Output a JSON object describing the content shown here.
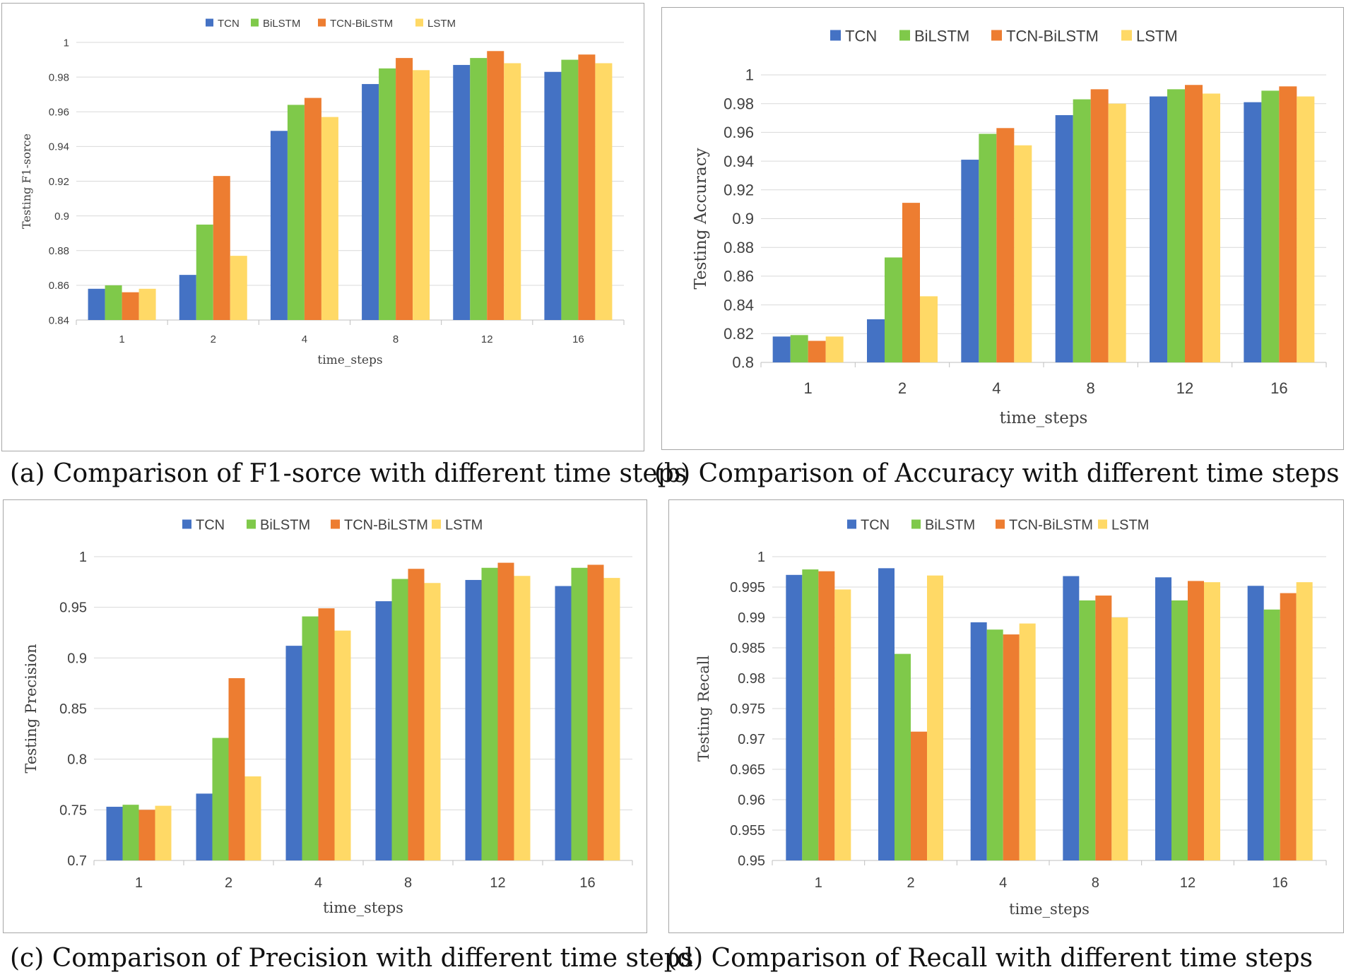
{
  "colors": {
    "TCN": "#4472c4",
    "BiLSTM": "#7fc94a",
    "TCN-BiLSTM": "#ed7d31",
    "LSTM": "#ffd966"
  },
  "chart_data": [
    {
      "type": "bar",
      "title": "",
      "categories": [
        "1",
        "2",
        "4",
        "8",
        "12",
        "16"
      ],
      "xlabel": "time_steps",
      "ylabel": "Testing F1-sorce",
      "ylim": [
        0.84,
        1
      ],
      "yticks": [
        0.84,
        0.86,
        0.88,
        0.9,
        0.92,
        0.94,
        0.96,
        0.98,
        1
      ],
      "ytick_labels": [
        "0.84",
        "0.86",
        "0.88",
        "0.9",
        "0.92",
        "0.94",
        "0.96",
        "0.98",
        "1"
      ],
      "legend": "top",
      "series": [
        {
          "name": "TCN",
          "values": [
            0.858,
            0.866,
            0.949,
            0.976,
            0.987,
            0.983
          ]
        },
        {
          "name": "BiLSTM",
          "values": [
            0.86,
            0.895,
            0.964,
            0.985,
            0.991,
            0.99
          ]
        },
        {
          "name": "TCN-BiLSTM",
          "values": [
            0.856,
            0.923,
            0.968,
            0.991,
            0.995,
            0.993
          ]
        },
        {
          "name": "LSTM",
          "values": [
            0.858,
            0.877,
            0.957,
            0.984,
            0.988,
            0.988
          ]
        }
      ]
    },
    {
      "type": "bar",
      "title": "",
      "categories": [
        "1",
        "2",
        "4",
        "8",
        "12",
        "16"
      ],
      "xlabel": "time_steps",
      "ylabel": "Testing Accuracy",
      "ylim": [
        0.8,
        1
      ],
      "yticks": [
        0.8,
        0.82,
        0.84,
        0.86,
        0.88,
        0.9,
        0.92,
        0.94,
        0.96,
        0.98,
        1
      ],
      "ytick_labels": [
        "0.8",
        "0.82",
        "0.84",
        "0.86",
        "0.88",
        "0.9",
        "0.92",
        "0.94",
        "0.96",
        "0.98",
        "1"
      ],
      "legend": "top",
      "series": [
        {
          "name": "TCN",
          "values": [
            0.818,
            0.83,
            0.941,
            0.972,
            0.985,
            0.981
          ]
        },
        {
          "name": "BiLSTM",
          "values": [
            0.819,
            0.873,
            0.959,
            0.983,
            0.99,
            0.989
          ]
        },
        {
          "name": "TCN-BiLSTM",
          "values": [
            0.815,
            0.911,
            0.963,
            0.99,
            0.993,
            0.992
          ]
        },
        {
          "name": "LSTM",
          "values": [
            0.818,
            0.846,
            0.951,
            0.98,
            0.987,
            0.985
          ]
        }
      ]
    },
    {
      "type": "bar",
      "title": "",
      "categories": [
        "1",
        "2",
        "4",
        "8",
        "12",
        "16"
      ],
      "xlabel": "time_steps",
      "ylabel": "Testing Precision",
      "ylim": [
        0.7,
        1
      ],
      "yticks": [
        0.7,
        0.75,
        0.8,
        0.85,
        0.9,
        0.95,
        1
      ],
      "ytick_labels": [
        "0.7",
        "0.75",
        "0.8",
        "0.85",
        "0.9",
        "0.95",
        "1"
      ],
      "legend": "top",
      "series": [
        {
          "name": "TCN",
          "values": [
            0.753,
            0.766,
            0.912,
            0.956,
            0.977,
            0.971
          ]
        },
        {
          "name": "BiLSTM",
          "values": [
            0.755,
            0.821,
            0.941,
            0.978,
            0.989,
            0.989
          ]
        },
        {
          "name": "TCN-BiLSTM",
          "values": [
            0.75,
            0.88,
            0.949,
            0.988,
            0.994,
            0.992
          ]
        },
        {
          "name": "LSTM",
          "values": [
            0.754,
            0.783,
            0.927,
            0.974,
            0.981,
            0.979
          ]
        }
      ]
    },
    {
      "type": "bar",
      "title": "",
      "categories": [
        "1",
        "2",
        "4",
        "8",
        "12",
        "16"
      ],
      "xlabel": "time_steps",
      "ylabel": "Testing Recall",
      "ylim": [
        0.95,
        1
      ],
      "yticks": [
        0.95,
        0.955,
        0.96,
        0.965,
        0.97,
        0.975,
        0.98,
        0.985,
        0.99,
        0.995,
        1
      ],
      "ytick_labels": [
        "0.95",
        "0.955",
        "0.96",
        "0.965",
        "0.97",
        "0.975",
        "0.98",
        "0.985",
        "0.99",
        "0.995",
        "1"
      ],
      "legend": "top",
      "series": [
        {
          "name": "TCN",
          "values": [
            0.997,
            0.9981,
            0.9892,
            0.9968,
            0.9966,
            0.9952
          ]
        },
        {
          "name": "BiLSTM",
          "values": [
            0.9979,
            0.984,
            0.988,
            0.9928,
            0.9928,
            0.9913
          ]
        },
        {
          "name": "TCN-BiLSTM",
          "values": [
            0.9976,
            0.9712,
            0.9872,
            0.9936,
            0.996,
            0.994
          ]
        },
        {
          "name": "LSTM",
          "values": [
            0.9946,
            0.9969,
            0.989,
            0.99,
            0.9958,
            0.9958
          ]
        }
      ]
    }
  ],
  "captions": [
    "(a) Comparison of F1-sorce with different time steps",
    "(b) Comparison of Accuracy with different time steps",
    "(c) Comparison of Precision with different time steps",
    "(d) Comparison of Recall with different time steps"
  ]
}
